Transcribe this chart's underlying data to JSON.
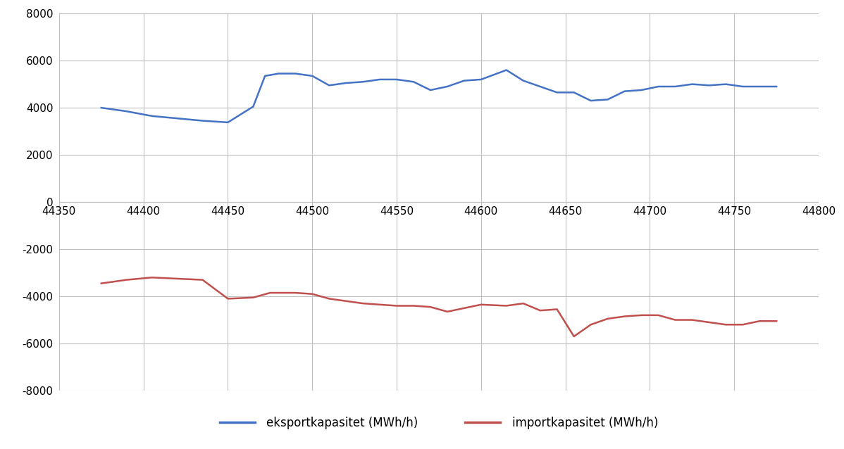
{
  "export_x": [
    44375,
    44390,
    44405,
    44420,
    44435,
    44450,
    44465,
    44472,
    44480,
    44490,
    44500,
    44510,
    44520,
    44530,
    44540,
    44550,
    44560,
    44570,
    44580,
    44590,
    44600,
    44615,
    44625,
    44635,
    44645,
    44655,
    44665,
    44675,
    44685,
    44695,
    44705,
    44715,
    44725,
    44735,
    44745,
    44755,
    44765,
    44775
  ],
  "export_y": [
    4000,
    3850,
    3650,
    3550,
    3450,
    3380,
    4050,
    5350,
    5450,
    5450,
    5350,
    4950,
    5050,
    5100,
    5200,
    5200,
    5100,
    4750,
    4900,
    5150,
    5200,
    5600,
    5150,
    4900,
    4650,
    4650,
    4300,
    4350,
    4700,
    4750,
    4900,
    4900,
    5000,
    4950,
    5000,
    4900,
    4900,
    4900
  ],
  "import_x": [
    44375,
    44390,
    44405,
    44420,
    44435,
    44450,
    44465,
    44475,
    44490,
    44500,
    44510,
    44520,
    44530,
    44540,
    44550,
    44560,
    44570,
    44580,
    44590,
    44600,
    44615,
    44625,
    44635,
    44645,
    44655,
    44665,
    44675,
    44685,
    44695,
    44705,
    44715,
    44725,
    44735,
    44745,
    44755,
    44765,
    44775
  ],
  "import_y": [
    -3450,
    -3300,
    -3200,
    -3250,
    -3300,
    -4100,
    -4050,
    -3850,
    -3850,
    -3900,
    -4100,
    -4200,
    -4300,
    -4350,
    -4400,
    -4400,
    -4450,
    -4650,
    -4500,
    -4350,
    -4400,
    -4300,
    -4600,
    -4550,
    -5700,
    -5200,
    -4950,
    -4850,
    -4800,
    -4800,
    -5000,
    -5000,
    -5100,
    -5200,
    -5200,
    -5050,
    -5050
  ],
  "export_color": "#4472C4",
  "import_color": "#C0504D",
  "background_color": "#ffffff",
  "grid_color": "#c0c0c0",
  "xlim": [
    44350,
    44800
  ],
  "ylim": [
    -8000,
    8000
  ],
  "xticks": [
    44350,
    44400,
    44450,
    44500,
    44550,
    44600,
    44650,
    44700,
    44750,
    44800
  ],
  "yticks": [
    -8000,
    -6000,
    -4000,
    -2000,
    0,
    2000,
    4000,
    6000,
    8000
  ],
  "export_label": "eksportkapasitet (MWh/h)",
  "import_label": "importkapasitet (MWh/h)",
  "line_width": 1.8
}
